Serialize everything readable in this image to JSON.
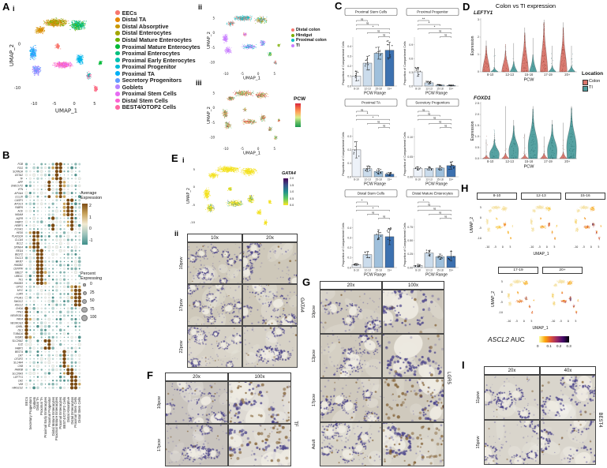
{
  "panels": {
    "A": "A",
    "B": "B",
    "C": "C",
    "D": "D",
    "E": "E",
    "F": "F",
    "G": "G",
    "H": "H",
    "I": "I",
    "i": "i",
    "ii": "ii",
    "iii": "iii"
  },
  "umap_axes": {
    "x": "UMAP_1",
    "y": "UMAP_2",
    "x_ticks": [
      "-10",
      "-5",
      "0",
      "5"
    ],
    "y_ticks": [
      "5",
      "0",
      "-5",
      "-10"
    ]
  },
  "panelA": {
    "cell_types": [
      {
        "label": "EECs",
        "color": "#F8766D"
      },
      {
        "label": "Distal TA",
        "color": "#E58700"
      },
      {
        "label": "Distal Absorptive",
        "color": "#C99800"
      },
      {
        "label": "Distal Enterocytes",
        "color": "#A3A500"
      },
      {
        "label": "Distal Mature Enterocytes",
        "color": "#6BB100"
      },
      {
        "label": "Proximal Mature Enterocytes",
        "color": "#00BA38"
      },
      {
        "label": "Proximal Enterocytes",
        "color": "#00BF7D"
      },
      {
        "label": "Proximal Early Enterocytes",
        "color": "#00C0AF"
      },
      {
        "label": "Proximal Progenitor",
        "color": "#00BCD8"
      },
      {
        "label": "Proximal TA",
        "color": "#00B0F6"
      },
      {
        "label": "Secretory Progenitors",
        "color": "#619CFF"
      },
      {
        "label": "Goblets",
        "color": "#B983FF"
      },
      {
        "label": "Proximal Stem Cells",
        "color": "#E76BF3"
      },
      {
        "label": "Distal Stem Cells",
        "color": "#FD61D1"
      },
      {
        "label": "BEST4/OTOP2 Cells",
        "color": "#FF67A4"
      }
    ],
    "location_legend": {
      "items": [
        {
          "label": "Distal colon",
          "color": "#F8766D"
        },
        {
          "label": "Hindgut",
          "color": "#7CAE00"
        },
        {
          "label": "Proximal colon",
          "color": "#00BFC4"
        },
        {
          "label": "TI",
          "color": "#C77CFF"
        }
      ]
    },
    "pcw_legend": {
      "title": "PCW",
      "gradient": [
        "#D7263D",
        "#F46D43",
        "#FDAE61",
        "#D9EF8B",
        "#66BD63",
        "#1A9850"
      ]
    }
  },
  "panelB": {
    "genes": [
      "FGB",
      "FGG",
      "SCNN1A",
      "GSTA2",
      "TF",
      "APP",
      "ONECUT2",
      "VTN",
      "APOA4",
      "CCL20",
      "CASP1",
      "APOC3",
      "FABP6",
      "ACE",
      "MGAM",
      "AQP8",
      "FABP2",
      "HEBP1",
      "FOXA1",
      "HES6",
      "PLA2G2A",
      "CLCA4",
      "BCL2",
      "SPINK4",
      "REG4",
      "BEST2",
      "TACC3",
      "MKI67",
      "HMGB2",
      "CENPW",
      "UBE2T",
      "UBE2C",
      "TK1",
      "HMGB3",
      "GPX2",
      "MYC",
      "LGR5",
      "PTGR1",
      "SMOC2",
      "ASCL2",
      "CHGA",
      "TPH1",
      "NEUROD1",
      "PAX4",
      "NEUROG3",
      "GHRL",
      "ISL1",
      "TUBA1A",
      "INSM1",
      "SLC26A2",
      "IL32",
      "FABP1",
      "BEST4",
      "CA7",
      "OTOP2",
      "SLC4A4",
      "CKB",
      "FAM3B",
      "SLC26A3",
      "LEFTY1",
      "CA2",
      "VIM",
      "HMGCS2"
    ],
    "cell_types": [
      "EECs",
      "Secretory Progenitors",
      "Goblets",
      "Distal TA",
      "Proximal TA",
      "Proximal Early Enterocytes",
      "Proximal Progenitor",
      "Distal Mature Enterocytes",
      "Proximal Mature Enterocytes",
      "Proximal Enterocytes",
      "BEST4/OTOP2 Cells",
      "Distal Absorptive",
      "Distal Enterocytes",
      "Proximal Stem Cells",
      "Distal Stem Cells"
    ],
    "avg_legend": {
      "title": [
        "Average",
        "Expression"
      ],
      "ticks": [
        "2",
        "1",
        "0",
        "-1"
      ],
      "colors": [
        "#7F4E16",
        "#C9A45C",
        "#F2EAD3",
        "#9DC3BC",
        "#3E8F8A"
      ]
    },
    "pct_legend": {
      "title": [
        "Percent",
        "Expressing"
      ],
      "items": [
        "0",
        "25",
        "50",
        "75",
        "100"
      ]
    }
  },
  "panelC": {
    "ylabel": "Proportion of Compartment Cells",
    "xlabel": "PCW Range",
    "x_ticks": [
      "8-10",
      "12-13",
      "15-18",
      "19+"
    ],
    "bar_colors": [
      "#EDF2F9",
      "#CBDCEC",
      "#9FC0DC",
      "#3C71B0"
    ],
    "charts": [
      {
        "title": "Proximal Stem Cells",
        "yticks": [
          "0.0",
          "0.1",
          "0.2",
          "0.3",
          "0.4"
        ],
        "ymax": 0.46,
        "values": [
          0.1,
          0.23,
          0.33,
          0.36
        ],
        "errs": [
          0.05,
          0.07,
          0.06,
          0.08
        ],
        "brackets": [
          [
            0,
            1,
            "ns"
          ],
          [
            0,
            2,
            "ns"
          ],
          [
            0,
            3,
            "*"
          ],
          [
            1,
            3,
            "ns"
          ],
          [
            2,
            3,
            "ns"
          ]
        ]
      },
      {
        "title": "Proximal Progenitor",
        "yticks": [
          "0.0",
          "0.3",
          "0.6",
          "0.9"
        ],
        "ymax": 1.0,
        "values": [
          0.31,
          0.07,
          0.02,
          0.01
        ],
        "errs": [
          0.1,
          0.03,
          0.01,
          0.01
        ],
        "brackets": [
          [
            0,
            1,
            "**"
          ],
          [
            0,
            2,
            "*"
          ],
          [
            0,
            3,
            "*"
          ],
          [
            1,
            3,
            "ns"
          ],
          [
            2,
            3,
            "ns"
          ]
        ]
      },
      {
        "title": "Proximal TA",
        "yticks": [
          "0.0",
          "0.1",
          "0.2",
          "0.3"
        ],
        "ymax": 0.34,
        "values": [
          0.2,
          0.06,
          0.04,
          0.02
        ],
        "errs": [
          0.06,
          0.02,
          0.02,
          0.01
        ],
        "brackets": [
          [
            0,
            1,
            "ns"
          ],
          [
            0,
            2,
            "*"
          ],
          [
            0,
            3,
            "*"
          ],
          [
            1,
            3,
            "ns"
          ],
          [
            2,
            3,
            "ns"
          ]
        ]
      },
      {
        "title": "Secretory Progenitors",
        "yticks": [
          "0.00",
          "0.05",
          "0.10"
        ],
        "ymax": 0.115,
        "values": [
          0.021,
          0.021,
          0.022,
          0.028
        ],
        "errs": [
          0.004,
          0.004,
          0.005,
          0.009
        ],
        "brackets": [
          [
            0,
            1,
            "ns"
          ],
          [
            0,
            2,
            "ns"
          ],
          [
            0,
            3,
            "ns"
          ],
          [
            1,
            3,
            "ns"
          ],
          [
            2,
            3,
            "ns"
          ]
        ]
      },
      {
        "title": "Distal Stem Cells",
        "yticks": [
          "0.0",
          "0.1",
          "0.2",
          "0.3",
          "0.4"
        ],
        "ymax": 0.46,
        "values": [
          0.03,
          0.13,
          0.33,
          0.31
        ],
        "errs": [
          0.01,
          0.03,
          0.05,
          0.08
        ],
        "brackets": [
          [
            0,
            1,
            "*"
          ],
          [
            0,
            2,
            "*"
          ],
          [
            0,
            3,
            "*"
          ],
          [
            1,
            2,
            "ns"
          ],
          [
            2,
            3,
            "ns"
          ]
        ]
      },
      {
        "title": "Distal Mature Enterocytes",
        "yticks": [
          "0.00",
          "0.25",
          "0.50",
          "0.75"
        ],
        "ymax": 0.85,
        "values": [
          0.04,
          0.27,
          0.2,
          0.21
        ],
        "errs": [
          0.02,
          0.05,
          0.05,
          0.09
        ],
        "brackets": [
          [
            0,
            1,
            "*"
          ],
          [
            0,
            2,
            "ns"
          ],
          [
            0,
            3,
            "ns"
          ],
          [
            1,
            3,
            "ns"
          ],
          [
            2,
            3,
            "ns"
          ]
        ]
      }
    ]
  },
  "panelD": {
    "title": "Colon vs TI expression",
    "legend_title": "Location",
    "legend": [
      {
        "label": "Colon",
        "color": "#D9756B"
      },
      {
        "label": "TI",
        "color": "#4E9E9E"
      }
    ],
    "xlabel": "PCW",
    "ylabel": "Expression",
    "x_ticks": [
      "8-10",
      "12-13",
      "15-16",
      "17-19",
      "20+"
    ],
    "plots": [
      {
        "gene": "LEFTY1",
        "yticks": [
          "0",
          "1",
          "2",
          "3"
        ],
        "colon_h": [
          0.5,
          0.4,
          0.75,
          0.95,
          0.85
        ],
        "ti_h": [
          0.08,
          0.2,
          0.33,
          0.12,
          0.12
        ],
        "colon_spike": [
          0.6,
          0.5,
          0.85,
          1.0,
          0.95
        ],
        "ti_spike": [
          0.45,
          0.55,
          0.65,
          0.5,
          0.5
        ],
        "bulge_ti": 0,
        "bulge_colon": 0.15,
        "jitter": "colon"
      },
      {
        "gene": "FOXD1",
        "yticks": [
          "0.0",
          "0.5",
          "1.0",
          "1.5",
          "2.0",
          "2.5"
        ],
        "colon_h": [
          0.06,
          0.1,
          0.08,
          0.1,
          0.12
        ],
        "ti_h": [
          0.35,
          0.6,
          0.9,
          0.62,
          0.92
        ],
        "colon_spike": [
          0.35,
          0.95,
          0.45,
          0.4,
          0.65
        ],
        "ti_spike": [
          0.45,
          0.7,
          0.95,
          0.7,
          0.95
        ],
        "bulge_ti": 0.7,
        "bulge_colon": 0,
        "jitter": "ti"
      }
    ]
  },
  "panelE": {
    "gata4_legend": {
      "title": "GATA4",
      "ticks": [
        "2.0",
        "1.5",
        "1.0",
        "0.5",
        "0.0"
      ],
      "colors": [
        "#440154",
        "#3B528B",
        "#21918C",
        "#5EC962",
        "#FDE725"
      ]
    },
    "grid": {
      "col_headers": [
        "10x",
        "20x"
      ],
      "row_labels": [
        "10pcw",
        "17pcw",
        "22pcw"
      ],
      "side_label": "GATA4"
    }
  },
  "panelF": {
    "grid": {
      "col_headers": [
        "20x",
        "100x"
      ],
      "row_labels": [
        "10pcw",
        "17pcw"
      ],
      "side_label": "TF"
    }
  },
  "panelG": {
    "grid": {
      "col_headers": [
        "20x",
        "100x"
      ],
      "row_labels": [
        "10pcw",
        "12pcw",
        "17pcw",
        "Adult"
      ],
      "side_label": "LGR5"
    }
  },
  "panelH": {
    "facets": [
      "8-10",
      "12-13",
      "15-16",
      "17-19",
      "20+"
    ],
    "auc_legend": {
      "gene": "ASCL2",
      "suffix": " AUC",
      "ticks": [
        "0",
        "0.1",
        "0.2",
        "0.3"
      ],
      "colors": [
        "#FCFFA4",
        "#FCA50A",
        "#DD513A",
        "#932667",
        "#420A68",
        "#000004"
      ]
    }
  },
  "panelI": {
    "grid": {
      "col_headers": [
        "20x",
        "40x"
      ],
      "row_labels": [
        "11pcw",
        "15pcw"
      ],
      "side_label": "BEST4"
    }
  }
}
